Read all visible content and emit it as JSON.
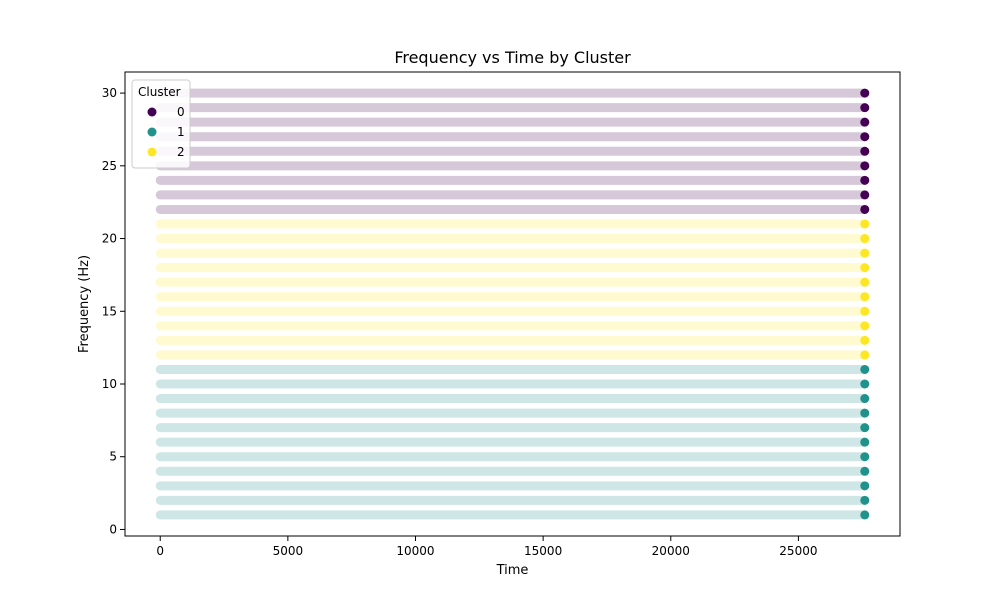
{
  "chart_data": {
    "type": "scatter",
    "title": "Frequency vs Time by Cluster",
    "xlabel": "Time",
    "ylabel": "Frequency (Hz)",
    "xlim": [
      -1380,
      28980
    ],
    "ylim": [
      -0.45,
      31.45
    ],
    "x_ticks": [
      0,
      5000,
      10000,
      15000,
      20000,
      25000
    ],
    "y_ticks": [
      0,
      5,
      10,
      15,
      20,
      25,
      30
    ],
    "x_range": [
      0,
      27600
    ],
    "frequencies": [
      1,
      2,
      3,
      4,
      5,
      6,
      7,
      8,
      9,
      10,
      11,
      12,
      13,
      14,
      15,
      16,
      17,
      18,
      19,
      20,
      21,
      22,
      23,
      24,
      25,
      26,
      27,
      28,
      29,
      30
    ],
    "cluster_of_frequency": [
      1,
      1,
      1,
      1,
      1,
      1,
      1,
      1,
      1,
      1,
      1,
      2,
      2,
      2,
      2,
      2,
      2,
      2,
      2,
      2,
      2,
      0,
      0,
      0,
      0,
      0,
      0,
      0,
      0,
      0
    ],
    "legend": {
      "title": "Cluster",
      "placement": "upper-left",
      "entries": [
        {
          "label": "0",
          "color": "#440154"
        },
        {
          "label": "1",
          "color": "#21918c"
        },
        {
          "label": "2",
          "color": "#fde725"
        }
      ]
    },
    "cluster_colors": {
      "0": "#440154",
      "1": "#21918c",
      "2": "#fde725"
    },
    "grid": false
  }
}
